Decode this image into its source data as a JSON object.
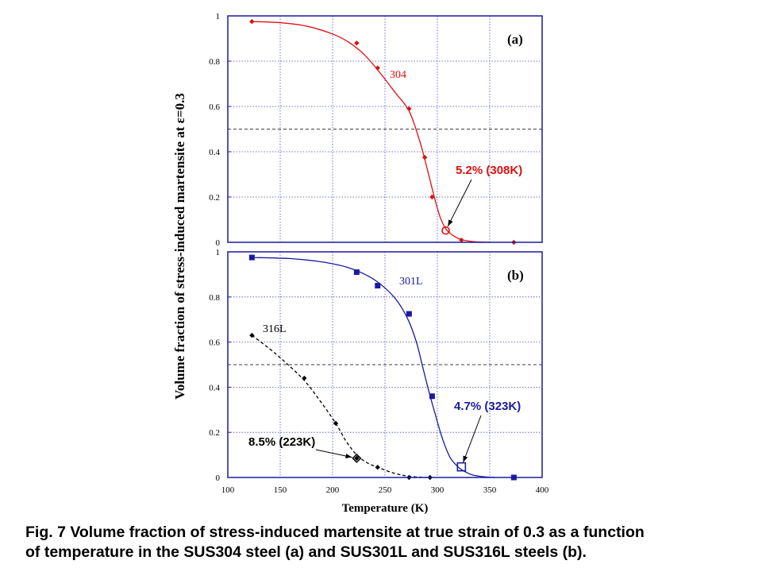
{
  "chart_data": [
    {
      "type": "line",
      "panel_label": "(a)",
      "ylabel": "Volume fraction of stress-induced martensite at ε=0.3",
      "xlabel": "Temperature (K)",
      "xlim": [
        100,
        400
      ],
      "ylim": [
        0,
        1
      ],
      "x_ticks": [
        "100",
        "150",
        "200",
        "250",
        "300",
        "350",
        "400"
      ],
      "y_ticks": [
        "0",
        "0.2",
        "0.4",
        "0.6",
        "0.8",
        "1"
      ],
      "grid": true,
      "reference_line_y": 0.5,
      "series": [
        {
          "name": "304",
          "color": "#dd1111",
          "marker": "diamond",
          "points": [
            [
              123,
              0.975
            ],
            [
              223,
              0.88
            ],
            [
              243,
              0.77
            ],
            [
              273,
              0.59
            ],
            [
              288,
              0.375
            ],
            [
              295,
              0.2
            ],
            [
              323,
              0.01
            ],
            [
              373,
              0.0
            ]
          ],
          "curve": [
            [
              123,
              0.975
            ],
            [
              150,
              0.97
            ],
            [
              175,
              0.955
            ],
            [
              200,
              0.92
            ],
            [
              215,
              0.885
            ],
            [
              230,
              0.83
            ],
            [
              245,
              0.75
            ],
            [
              260,
              0.66
            ],
            [
              273,
              0.58
            ],
            [
              283,
              0.45
            ],
            [
              290,
              0.33
            ],
            [
              296,
              0.22
            ],
            [
              302,
              0.12
            ],
            [
              308,
              0.06
            ],
            [
              315,
              0.03
            ],
            [
              323,
              0.012
            ],
            [
              335,
              0.003
            ],
            [
              350,
              0.0
            ]
          ]
        }
      ],
      "annotation": {
        "text": "5.2% (308K)",
        "color": "#dd1111",
        "point": [
          308,
          0.052
        ],
        "marker": "open-circle"
      }
    },
    {
      "type": "line",
      "panel_label": "(b)",
      "xlim": [
        100,
        400
      ],
      "ylim": [
        0,
        1
      ],
      "x_ticks": [
        "100",
        "150",
        "200",
        "250",
        "300",
        "350",
        "400"
      ],
      "y_ticks": [
        "0",
        "0.2",
        "0.4",
        "0.6",
        "0.8",
        "1"
      ],
      "grid": true,
      "reference_line_y": 0.5,
      "series": [
        {
          "name": "301L",
          "color": "#1a1aa0",
          "marker": "square",
          "points": [
            [
              123,
              0.975
            ],
            [
              223,
              0.91
            ],
            [
              243,
              0.85
            ],
            [
              273,
              0.725
            ],
            [
              295,
              0.36
            ],
            [
              373,
              0.0
            ]
          ],
          "curve": [
            [
              123,
              0.975
            ],
            [
              160,
              0.97
            ],
            [
              190,
              0.955
            ],
            [
              215,
              0.93
            ],
            [
              235,
              0.89
            ],
            [
              250,
              0.84
            ],
            [
              262,
              0.78
            ],
            [
              272,
              0.7
            ],
            [
              280,
              0.6
            ],
            [
              286,
              0.49
            ],
            [
              292,
              0.38
            ],
            [
              298,
              0.28
            ],
            [
              305,
              0.17
            ],
            [
              312,
              0.09
            ],
            [
              318,
              0.055
            ],
            [
              323,
              0.035
            ],
            [
              333,
              0.012
            ],
            [
              345,
              0.003
            ],
            [
              355,
              0.0
            ]
          ]
        },
        {
          "name": "316L",
          "color": "#000000",
          "marker": "diamond",
          "dashed": true,
          "points": [
            [
              123,
              0.63
            ],
            [
              173,
              0.44
            ],
            [
              203,
              0.24
            ],
            [
              223,
              0.085
            ],
            [
              243,
              0.045
            ],
            [
              273,
              0.0
            ],
            [
              293,
              0.0
            ]
          ],
          "curve": [
            [
              123,
              0.63
            ],
            [
              140,
              0.57
            ],
            [
              155,
              0.51
            ],
            [
              173,
              0.43
            ],
            [
              188,
              0.34
            ],
            [
              203,
              0.24
            ],
            [
              213,
              0.16
            ],
            [
              223,
              0.1
            ],
            [
              233,
              0.065
            ],
            [
              243,
              0.045
            ],
            [
              258,
              0.02
            ],
            [
              273,
              0.005
            ],
            [
              290,
              0.0
            ]
          ]
        }
      ],
      "annotations": [
        {
          "text": "4.7% (323K)",
          "color": "#1a1aa0",
          "point": [
            323,
            0.047
          ],
          "marker": "open-square"
        },
        {
          "text": "8.5% (223K)",
          "color": "#000000",
          "point": [
            223,
            0.085
          ],
          "marker": "open-diamond"
        }
      ]
    }
  ],
  "caption": {
    "line1": "Fig. 7  Volume fraction of stress-induced martensite at true strain of 0.3 as a function",
    "line2": "of temperature in the SUS304 steel (a) and SUS301L and SUS316L steels (b)."
  }
}
